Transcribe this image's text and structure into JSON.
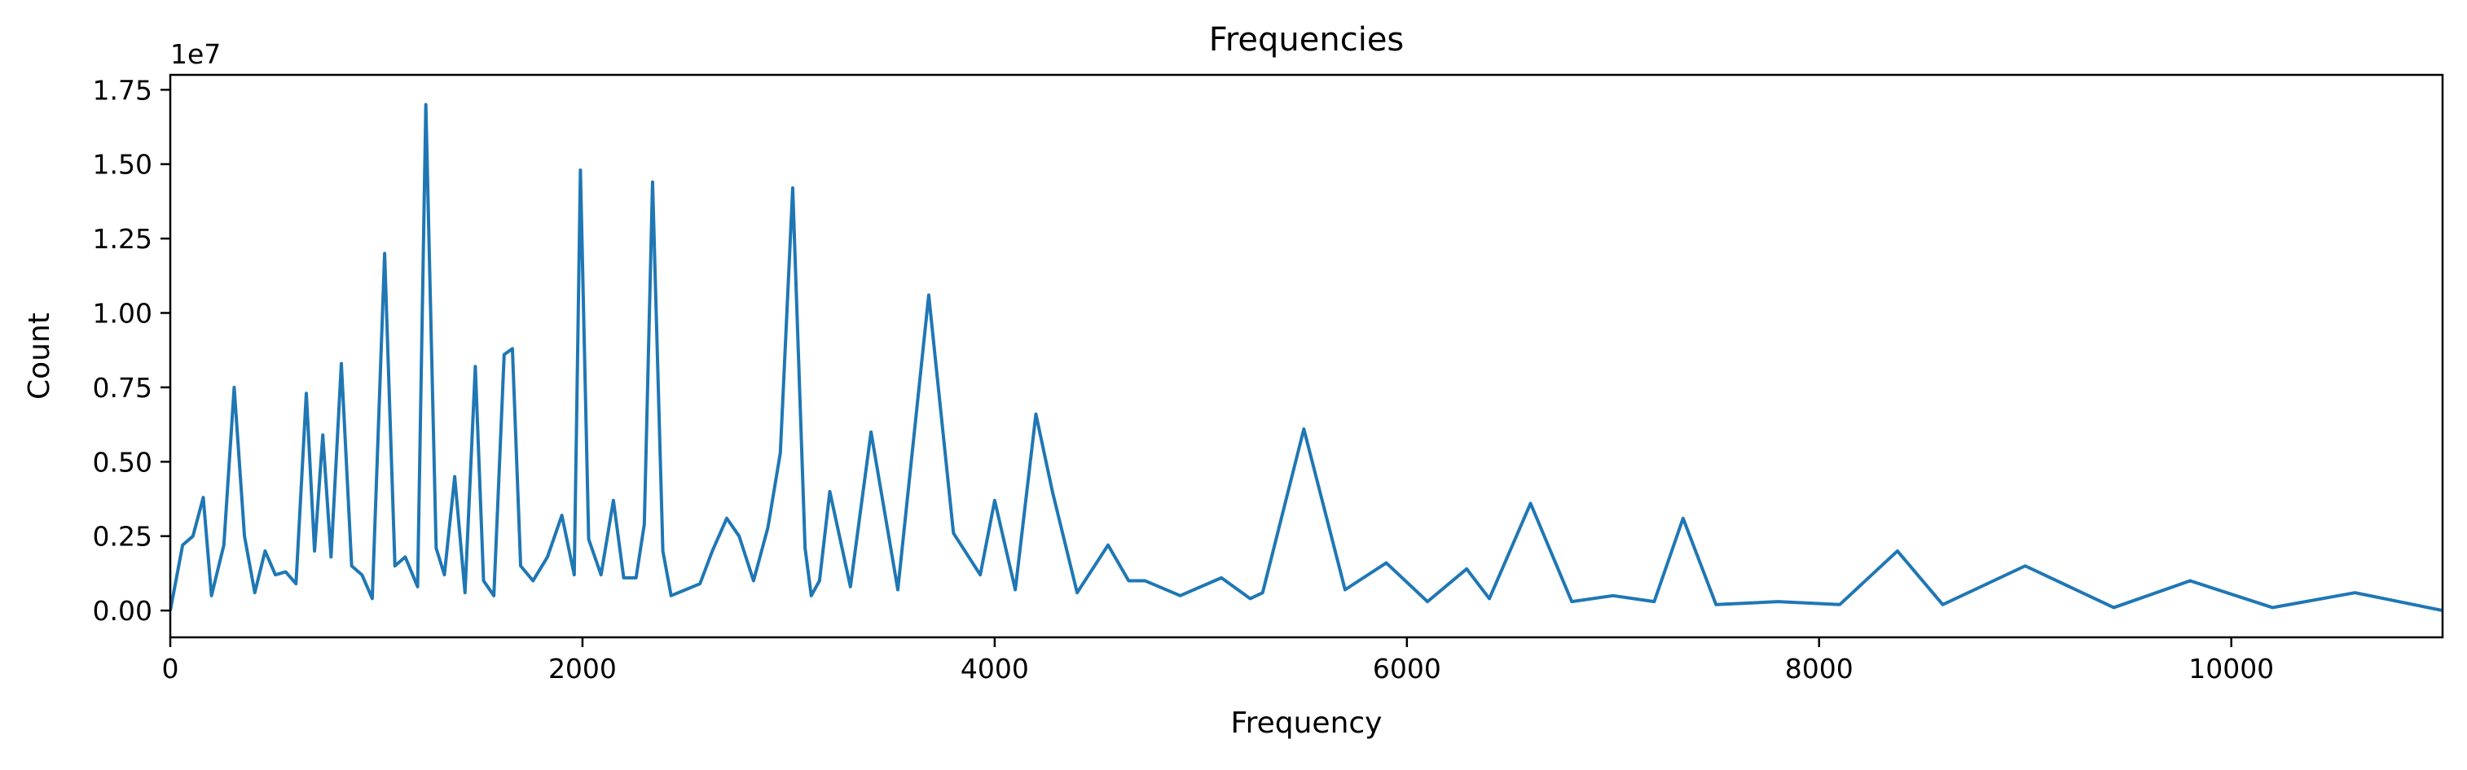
{
  "chart_data": {
    "type": "line",
    "title": "Frequencies",
    "xlabel": "Frequency",
    "ylabel": "Count",
    "y_offset_label": "1e7",
    "xlim": [
      0,
      11025
    ],
    "ylim": [
      -0.09,
      1.8
    ],
    "x_ticks": [
      0,
      2000,
      4000,
      6000,
      8000,
      10000
    ],
    "x_tick_labels": [
      "0",
      "2000",
      "4000",
      "6000",
      "8000",
      "10000"
    ],
    "y_ticks": [
      0,
      0.25,
      0.5,
      0.75,
      1.0,
      1.25,
      1.5,
      1.75
    ],
    "y_tick_labels": [
      "0.00",
      "0.25",
      "0.50",
      "0.75",
      "1.00",
      "1.25",
      "1.50",
      "1.75"
    ],
    "grid": false,
    "line_color": "#1f77b4",
    "series": [
      {
        "x": [
          0,
          60,
          110,
          160,
          200,
          260,
          310,
          360,
          410,
          460,
          510,
          560,
          610,
          660,
          700,
          740,
          780,
          830,
          880,
          930,
          980,
          1040,
          1090,
          1140,
          1200,
          1240,
          1290,
          1330,
          1380,
          1430,
          1480,
          1520,
          1570,
          1620,
          1660,
          1700,
          1760,
          1830,
          1900,
          1960,
          1990,
          2030,
          2090,
          2150,
          2200,
          2260,
          2300,
          2340,
          2390,
          2430,
          2500,
          2570,
          2630,
          2700,
          2760,
          2830,
          2900,
          2960,
          3020,
          3080,
          3110,
          3150,
          3200,
          3300,
          3400,
          3530,
          3680,
          3800,
          3930,
          4000,
          4100,
          4200,
          4280,
          4400,
          4550,
          4650,
          4730,
          4900,
          5100,
          5240,
          5300,
          5500,
          5700,
          5900,
          6100,
          6290,
          6400,
          6600,
          6800,
          7000,
          7200,
          7340,
          7500,
          7800,
          8100,
          8380,
          8600,
          9000,
          9430,
          9800,
          10200,
          10600,
          11025
        ],
        "y": [
          0.0,
          0.22,
          0.25,
          0.38,
          0.05,
          0.22,
          0.75,
          0.25,
          0.06,
          0.2,
          0.12,
          0.13,
          0.09,
          0.73,
          0.2,
          0.59,
          0.18,
          0.83,
          0.15,
          0.12,
          0.04,
          1.2,
          0.15,
          0.18,
          0.08,
          1.7,
          0.21,
          0.12,
          0.45,
          0.06,
          0.82,
          0.1,
          0.05,
          0.86,
          0.88,
          0.15,
          0.1,
          0.18,
          0.32,
          0.12,
          1.48,
          0.24,
          0.12,
          0.37,
          0.11,
          0.11,
          0.29,
          1.44,
          0.2,
          0.05,
          0.07,
          0.09,
          0.2,
          0.31,
          0.25,
          0.1,
          0.28,
          0.53,
          1.42,
          0.21,
          0.05,
          0.1,
          0.4,
          0.08,
          0.6,
          0.07,
          1.06,
          0.26,
          0.12,
          0.37,
          0.07,
          0.66,
          0.4,
          0.06,
          0.22,
          0.1,
          0.1,
          0.05,
          0.11,
          0.04,
          0.06,
          0.61,
          0.07,
          0.16,
          0.03,
          0.14,
          0.04,
          0.36,
          0.03,
          0.05,
          0.03,
          0.31,
          0.02,
          0.03,
          0.02,
          0.2,
          0.02,
          0.15,
          0.01,
          0.1,
          0.01,
          0.06,
          0.0
        ]
      }
    ]
  }
}
